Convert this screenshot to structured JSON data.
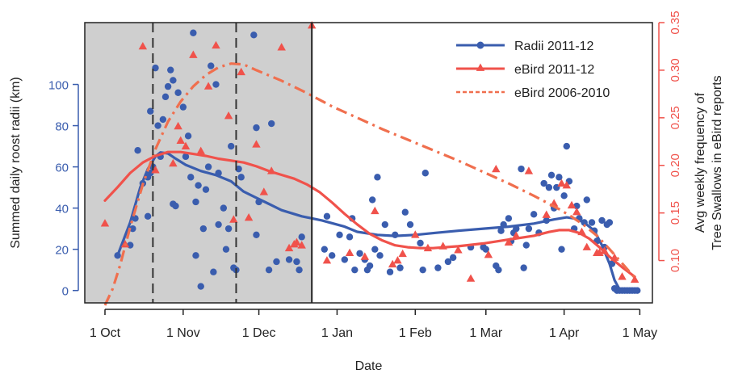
{
  "chart_data": {
    "type": "scatter",
    "title": "",
    "xlabel": "Date",
    "ylabel_left": "Summed daily roost radii (km)",
    "ylabel_right_lines": [
      "Avg weekly frequency of",
      "Tree Swallows in eBird reports"
    ],
    "x_tick_labels": [
      "1 Oct",
      "1 Nov",
      "1 Dec",
      "1 Jan",
      "1 Feb",
      "1 Mar",
      "1 Apr",
      "1 May"
    ],
    "x_tick_days": [
      0,
      31,
      61,
      92,
      123,
      151,
      182,
      212
    ],
    "xlim": [
      -8,
      217
    ],
    "ylim_left": [
      -6,
      130
    ],
    "yticks_left": [
      0,
      20,
      40,
      60,
      80,
      100
    ],
    "ylim_right": [
      0.0555,
      0.35
    ],
    "yticks_right": [
      0.1,
      0.15,
      0.2,
      0.25,
      0.3,
      0.35
    ],
    "yticks_right_labels": [
      "0.10",
      "0.15",
      "0.20",
      "0.25",
      "0.30",
      "0.35"
    ],
    "shaded_day_range": [
      -8,
      82
    ],
    "dashed_vlines": [
      19,
      52
    ],
    "solid_vline": 82,
    "legend_position": "top-right",
    "colors": {
      "radii": "#3a5dae",
      "ebird": "#f0524b",
      "ebird_hist": "#f06f4e",
      "shade": "#cfcfcf",
      "frame": "#222222"
    },
    "series": [
      {
        "name": "Radii 2011-12",
        "axis": "left",
        "kind": "points",
        "points": [
          [
            5,
            17
          ],
          [
            10,
            22
          ],
          [
            11,
            30
          ],
          [
            12,
            35
          ],
          [
            13,
            68
          ],
          [
            15,
            52
          ],
          [
            17,
            55
          ],
          [
            17,
            36
          ],
          [
            18,
            57
          ],
          [
            18,
            87
          ],
          [
            19,
            60
          ],
          [
            20,
            108
          ],
          [
            21,
            80
          ],
          [
            22,
            65
          ],
          [
            23,
            83
          ],
          [
            24,
            94
          ],
          [
            25,
            99
          ],
          [
            26,
            107
          ],
          [
            27,
            102
          ],
          [
            27,
            42
          ],
          [
            28,
            41
          ],
          [
            29,
            96
          ],
          [
            31,
            89
          ],
          [
            32,
            65
          ],
          [
            33,
            75
          ],
          [
            34,
            55
          ],
          [
            35,
            125
          ],
          [
            36,
            43
          ],
          [
            36,
            17
          ],
          [
            37,
            51
          ],
          [
            38,
            2
          ],
          [
            39,
            30
          ],
          [
            40,
            49
          ],
          [
            41,
            60
          ],
          [
            42,
            109
          ],
          [
            43,
            9
          ],
          [
            44,
            100
          ],
          [
            45,
            57
          ],
          [
            45,
            32
          ],
          [
            47,
            40
          ],
          [
            48,
            20
          ],
          [
            49,
            30
          ],
          [
            50,
            70
          ],
          [
            51,
            11
          ],
          [
            52,
            10
          ],
          [
            53,
            59
          ],
          [
            54,
            55
          ],
          [
            59,
            124
          ],
          [
            60,
            79
          ],
          [
            60,
            27
          ],
          [
            61,
            43
          ],
          [
            65,
            10
          ],
          [
            66,
            81
          ],
          [
            68,
            14
          ],
          [
            73,
            15
          ],
          [
            76,
            14
          ],
          [
            77,
            10
          ],
          [
            78,
            26
          ],
          [
            87,
            20
          ],
          [
            88,
            36
          ],
          [
            90,
            17
          ],
          [
            93,
            27
          ],
          [
            95,
            15
          ],
          [
            97,
            26
          ],
          [
            98,
            35
          ],
          [
            99,
            10
          ],
          [
            101,
            18
          ],
          [
            103,
            15
          ],
          [
            104,
            10
          ],
          [
            105,
            12
          ],
          [
            106,
            44
          ],
          [
            107,
            20
          ],
          [
            108,
            55
          ],
          [
            109,
            17
          ],
          [
            111,
            32
          ],
          [
            113,
            9
          ],
          [
            115,
            27
          ],
          [
            117,
            11
          ],
          [
            119,
            38
          ],
          [
            121,
            32
          ],
          [
            125,
            23
          ],
          [
            126,
            10
          ],
          [
            127,
            57
          ],
          [
            132,
            11
          ],
          [
            136,
            14
          ],
          [
            138,
            16
          ],
          [
            145,
            21
          ],
          [
            150,
            21
          ],
          [
            151,
            20
          ],
          [
            155,
            12
          ],
          [
            156,
            10
          ],
          [
            157,
            29
          ],
          [
            158,
            32
          ],
          [
            160,
            35
          ],
          [
            161,
            24
          ],
          [
            162,
            28
          ],
          [
            163,
            30
          ],
          [
            165,
            59
          ],
          [
            166,
            11
          ],
          [
            167,
            22
          ],
          [
            168,
            30
          ],
          [
            170,
            37
          ],
          [
            172,
            28
          ],
          [
            174,
            52
          ],
          [
            175,
            34
          ],
          [
            176,
            50
          ],
          [
            177,
            56
          ],
          [
            178,
            40
          ],
          [
            179,
            50
          ],
          [
            180,
            55
          ],
          [
            181,
            20
          ],
          [
            182,
            46
          ],
          [
            183,
            70
          ],
          [
            184,
            53
          ],
          [
            186,
            30
          ],
          [
            187,
            41
          ],
          [
            188,
            35
          ],
          [
            190,
            33
          ],
          [
            191,
            44
          ],
          [
            193,
            33
          ],
          [
            194,
            29
          ],
          [
            195,
            24
          ],
          [
            197,
            34
          ],
          [
            198,
            21
          ],
          [
            199,
            32
          ],
          [
            200,
            33
          ],
          [
            201,
            13
          ],
          [
            202,
            1
          ],
          [
            203,
            0
          ],
          [
            204,
            0
          ],
          [
            205,
            0
          ],
          [
            206,
            0
          ],
          [
            207,
            0
          ],
          [
            208,
            0
          ],
          [
            209,
            0
          ],
          [
            210,
            0
          ],
          [
            211,
            0
          ]
        ]
      },
      {
        "name": "Radii 2011-12",
        "axis": "left",
        "kind": "smooth",
        "points": [
          [
            5,
            17
          ],
          [
            10,
            33
          ],
          [
            14,
            50
          ],
          [
            17,
            59
          ],
          [
            20,
            65
          ],
          [
            22,
            67
          ],
          [
            25,
            66.5
          ],
          [
            28,
            64
          ],
          [
            32,
            61
          ],
          [
            38,
            58
          ],
          [
            44,
            56
          ],
          [
            50,
            53
          ],
          [
            55,
            48
          ],
          [
            60,
            45
          ],
          [
            65,
            42
          ],
          [
            70,
            39
          ],
          [
            78,
            36
          ],
          [
            86,
            34
          ],
          [
            95,
            31
          ],
          [
            100,
            28.5
          ],
          [
            108,
            27
          ],
          [
            115,
            26.5
          ],
          [
            123,
            27
          ],
          [
            131,
            28
          ],
          [
            140,
            29
          ],
          [
            150,
            30
          ],
          [
            160,
            31
          ],
          [
            170,
            32.5
          ],
          [
            178,
            34.5
          ],
          [
            183,
            35.5
          ],
          [
            186,
            35
          ],
          [
            190,
            33
          ],
          [
            194,
            29
          ],
          [
            197,
            22
          ],
          [
            200,
            13
          ],
          [
            202,
            5
          ],
          [
            204,
            0.5
          ],
          [
            207,
            0
          ],
          [
            211,
            0
          ]
        ]
      },
      {
        "name": "eBird 2011-12",
        "axis": "right",
        "kind": "points",
        "points": [
          [
            0,
            0.139
          ],
          [
            8,
            0.117
          ],
          [
            15,
            0.325
          ],
          [
            20,
            0.195
          ],
          [
            27,
            0.202
          ],
          [
            29,
            0.241
          ],
          [
            30,
            0.226
          ],
          [
            32,
            0.22
          ],
          [
            35,
            0.316
          ],
          [
            38,
            0.215
          ],
          [
            41,
            0.283
          ],
          [
            44,
            0.326
          ],
          [
            49,
            0.252
          ],
          [
            51,
            0.143
          ],
          [
            54,
            0.298
          ],
          [
            57,
            0.145
          ],
          [
            60,
            0.222
          ],
          [
            63,
            0.172
          ],
          [
            66,
            0.194
          ],
          [
            70,
            0.324
          ],
          [
            73,
            0.113
          ],
          [
            75,
            0.117
          ],
          [
            76,
            0.119
          ],
          [
            78,
            0.116
          ],
          [
            82,
            0.347
          ],
          [
            88,
            0.1
          ],
          [
            97,
            0.108
          ],
          [
            103,
            0.104
          ],
          [
            107,
            0.152
          ],
          [
            114,
            0.096
          ],
          [
            116,
            0.1
          ],
          [
            118,
            0.107
          ],
          [
            123,
            0.127
          ],
          [
            128,
            0.113
          ],
          [
            134,
            0.115
          ],
          [
            140,
            0.111
          ],
          [
            145,
            0.081
          ],
          [
            152,
            0.106
          ],
          [
            155,
            0.196
          ],
          [
            160,
            0.119
          ],
          [
            163,
            0.126
          ],
          [
            168,
            0.194
          ],
          [
            175,
            0.148
          ],
          [
            178,
            0.16
          ],
          [
            181,
            0.181
          ],
          [
            183,
            0.179
          ],
          [
            185,
            0.158
          ],
          [
            187,
            0.151
          ],
          [
            189,
            0.13
          ],
          [
            191,
            0.114
          ],
          [
            195,
            0.108
          ],
          [
            196,
            0.108
          ],
          [
            198,
            0.11
          ],
          [
            202,
            0.103
          ],
          [
            205,
            0.083
          ],
          [
            210,
            0.08
          ]
        ]
      },
      {
        "name": "eBird 2011-12",
        "axis": "right",
        "kind": "smooth",
        "points": [
          [
            0,
            0.163
          ],
          [
            5,
            0.177
          ],
          [
            10,
            0.192
          ],
          [
            15,
            0.203
          ],
          [
            20,
            0.21
          ],
          [
            25,
            0.214
          ],
          [
            30,
            0.214
          ],
          [
            35,
            0.212
          ],
          [
            40,
            0.21
          ],
          [
            45,
            0.207
          ],
          [
            50,
            0.205
          ],
          [
            55,
            0.203
          ],
          [
            60,
            0.199
          ],
          [
            65,
            0.194
          ],
          [
            70,
            0.19
          ],
          [
            75,
            0.186
          ],
          [
            80,
            0.18
          ],
          [
            85,
            0.172
          ],
          [
            90,
            0.161
          ],
          [
            95,
            0.149
          ],
          [
            100,
            0.138
          ],
          [
            105,
            0.128
          ],
          [
            110,
            0.121
          ],
          [
            115,
            0.116
          ],
          [
            120,
            0.114
          ],
          [
            125,
            0.113
          ],
          [
            130,
            0.113
          ],
          [
            140,
            0.115
          ],
          [
            150,
            0.118
          ],
          [
            160,
            0.122
          ],
          [
            170,
            0.126
          ],
          [
            176,
            0.13
          ],
          [
            180,
            0.132
          ],
          [
            184,
            0.132
          ],
          [
            188,
            0.129
          ],
          [
            192,
            0.123
          ],
          [
            196,
            0.114
          ],
          [
            200,
            0.104
          ],
          [
            205,
            0.093
          ],
          [
            210,
            0.083
          ]
        ]
      },
      {
        "name": "eBird 2006-2010",
        "axis": "right",
        "kind": "dashdot",
        "points": [
          [
            0,
            0.053
          ],
          [
            3,
            0.07
          ],
          [
            6,
            0.095
          ],
          [
            10,
            0.135
          ],
          [
            15,
            0.18
          ],
          [
            20,
            0.217
          ],
          [
            25,
            0.246
          ],
          [
            30,
            0.267
          ],
          [
            35,
            0.283
          ],
          [
            40,
            0.295
          ],
          [
            45,
            0.303
          ],
          [
            50,
            0.307
          ],
          [
            55,
            0.306
          ],
          [
            60,
            0.3
          ],
          [
            70,
            0.289
          ],
          [
            80,
            0.276
          ],
          [
            90,
            0.262
          ],
          [
            100,
            0.25
          ],
          [
            110,
            0.238
          ],
          [
            120,
            0.227
          ],
          [
            130,
            0.216
          ],
          [
            140,
            0.205
          ],
          [
            150,
            0.193
          ],
          [
            160,
            0.181
          ],
          [
            170,
            0.168
          ],
          [
            180,
            0.154
          ],
          [
            185,
            0.146
          ],
          [
            190,
            0.137
          ],
          [
            195,
            0.126
          ],
          [
            200,
            0.112
          ],
          [
            205,
            0.097
          ],
          [
            210,
            0.082
          ]
        ]
      }
    ]
  }
}
